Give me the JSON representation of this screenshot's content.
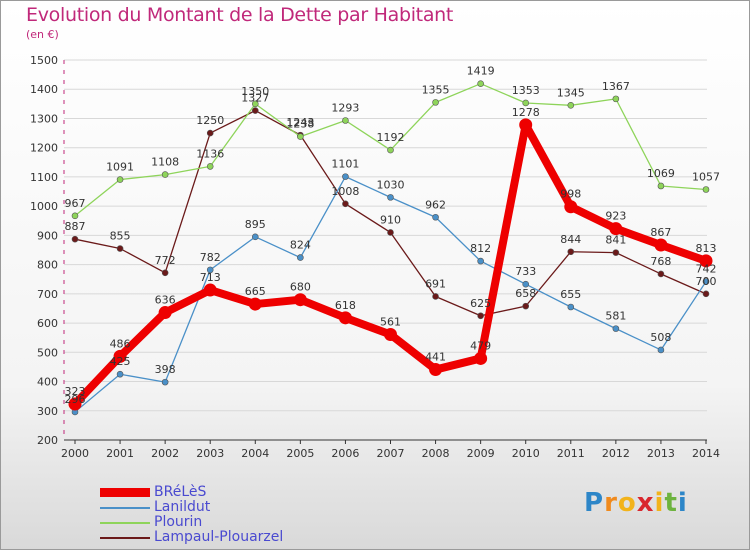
{
  "title": "Evolution du Montant de la Dette par Habitant",
  "subtitle": "(en €)",
  "logo": {
    "letters": [
      "P",
      "r",
      "o",
      "x",
      "i",
      "t",
      "i"
    ],
    "colors": [
      "#2d86c8",
      "#f08a1d",
      "#f2b31b",
      "#d9272e",
      "#f2b31b",
      "#6db33f",
      "#2d86c8"
    ]
  },
  "chart_data": {
    "type": "line",
    "x": [
      "2000",
      "2001",
      "2002",
      "2003",
      "2004",
      "2005",
      "2006",
      "2007",
      "2008",
      "2009",
      "2010",
      "2011",
      "2012",
      "2013",
      "2014"
    ],
    "ylim": [
      200,
      1500
    ],
    "yticks": [
      200,
      300,
      400,
      500,
      600,
      700,
      800,
      900,
      1000,
      1100,
      1200,
      1300,
      1400,
      1500
    ],
    "xlabel": "",
    "ylabel": "",
    "grid": true,
    "legend_position": "bottom-left",
    "series": [
      {
        "name": "Lampaul-Plouarzel",
        "color": "#6b1a1a",
        "emphasis": false,
        "values": [
          887,
          855,
          772,
          1250,
          1327,
          1243,
          1008,
          910,
          691,
          625,
          658,
          844,
          841,
          768,
          700
        ]
      },
      {
        "name": "Plourin",
        "color": "#8ed45a",
        "emphasis": false,
        "values": [
          967,
          1091,
          1108,
          1136,
          1350,
          1238,
          1293,
          1192,
          1355,
          1419,
          1353,
          1345,
          1367,
          1069,
          1057
        ]
      },
      {
        "name": "Lanildut",
        "color": "#4a90c8",
        "emphasis": false,
        "values": [
          296,
          425,
          398,
          782,
          895,
          824,
          1101,
          1030,
          962,
          812,
          733,
          655,
          581,
          508,
          742
        ]
      },
      {
        "name": "BRéLèS",
        "color": "#ee0000",
        "emphasis": true,
        "values": [
          323,
          486,
          636,
          713,
          665,
          680,
          618,
          561,
          441,
          479,
          1278,
          998,
          923,
          867,
          813
        ]
      }
    ],
    "legend": [
      "BRéLèS",
      "Lanildut",
      "Plourin",
      "Lampaul-Plouarzel"
    ]
  }
}
